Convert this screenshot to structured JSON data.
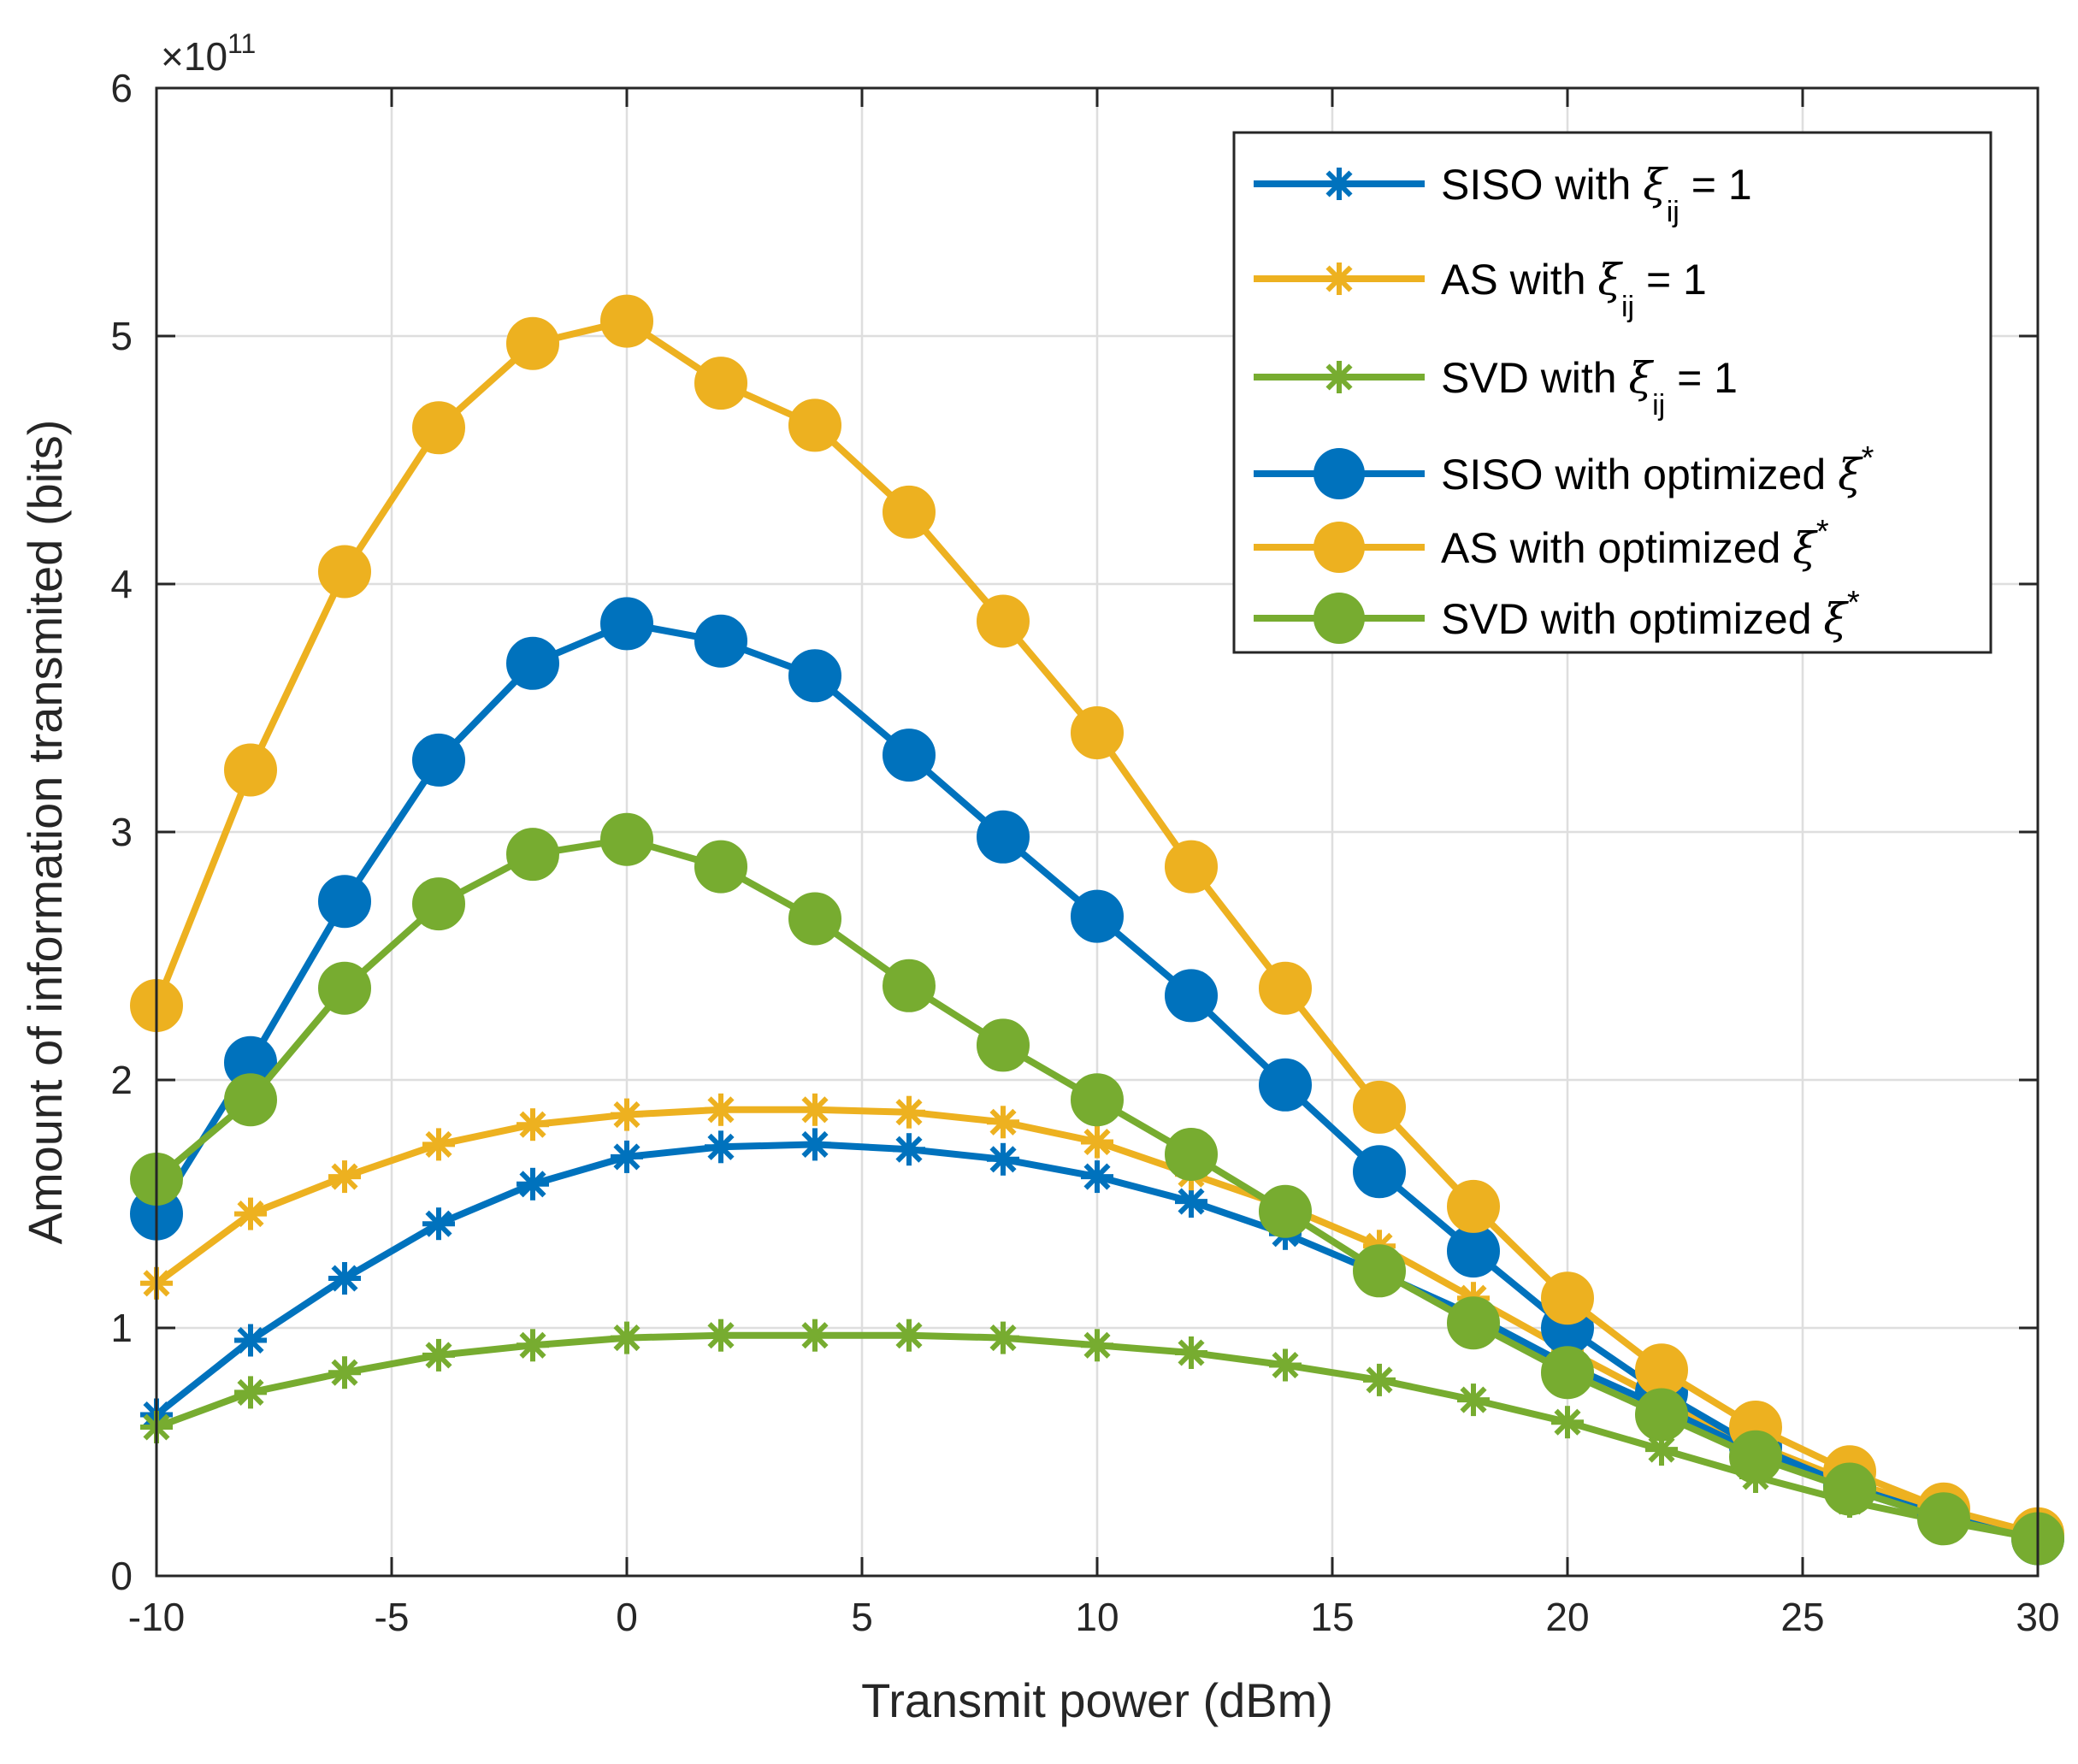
{
  "chart_data": {
    "type": "line",
    "xlabel": "Transmit power (dBm)",
    "ylabel": "Amount of information transmited (bits)",
    "y_multiplier": {
      "base": "×10",
      "exponent": "11"
    },
    "xlim": [
      -10,
      30
    ],
    "ylim": [
      0,
      6
    ],
    "xticks": [
      -10,
      -5,
      0,
      5,
      10,
      15,
      20,
      25,
      30
    ],
    "yticks": [
      0,
      1,
      2,
      3,
      4,
      5,
      6
    ],
    "grid": true,
    "legend_position": "top-right",
    "x": [
      -10,
      -8,
      -6,
      -4,
      -2,
      0,
      2,
      4,
      6,
      8,
      10,
      12,
      14,
      16,
      18,
      20,
      22,
      24,
      26,
      28,
      30
    ],
    "series": [
      {
        "key": "siso_xi1",
        "name": "SISO with ξ_ij = 1",
        "legend": {
          "prefix": "SISO with ",
          "symbol": "ξ",
          "sub": "ij",
          "sup": "",
          "suffix": " = 1"
        },
        "color": "#0072BD",
        "marker": "asterisk",
        "values": [
          0.65,
          0.95,
          1.2,
          1.42,
          1.58,
          1.69,
          1.73,
          1.74,
          1.72,
          1.68,
          1.61,
          1.51,
          1.38,
          1.22,
          1.05,
          0.85,
          0.68,
          0.5,
          0.35,
          0.23,
          0.15
        ]
      },
      {
        "key": "as_xi1",
        "name": "AS with ξ_ij = 1",
        "legend": {
          "prefix": "AS with ",
          "symbol": "ξ",
          "sub": "ij",
          "sup": "",
          "suffix": " = 1"
        },
        "color": "#EDB120",
        "marker": "asterisk",
        "values": [
          1.18,
          1.46,
          1.61,
          1.74,
          1.82,
          1.86,
          1.88,
          1.88,
          1.87,
          1.83,
          1.75,
          1.62,
          1.49,
          1.33,
          1.12,
          0.91,
          0.71,
          0.53,
          0.38,
          0.26,
          0.17
        ]
      },
      {
        "key": "svd_xi1",
        "name": "SVD with ξ_ij = 1",
        "legend": {
          "prefix": "SVD with ",
          "symbol": "ξ",
          "sub": "ij",
          "sup": "",
          "suffix": " = 1"
        },
        "color": "#77AC30",
        "marker": "asterisk",
        "values": [
          0.6,
          0.74,
          0.82,
          0.89,
          0.93,
          0.96,
          0.97,
          0.97,
          0.97,
          0.96,
          0.93,
          0.9,
          0.85,
          0.79,
          0.71,
          0.62,
          0.51,
          0.4,
          0.3,
          0.22,
          0.15
        ]
      },
      {
        "key": "siso_opt",
        "name": "SISO with optimized ξ*",
        "legend": {
          "prefix": "SISO with optimized ",
          "symbol": "ξ",
          "sub": "",
          "sup": "*",
          "suffix": ""
        },
        "color": "#0072BD",
        "marker": "circle",
        "values": [
          1.46,
          2.07,
          2.72,
          3.29,
          3.68,
          3.84,
          3.77,
          3.63,
          3.31,
          2.98,
          2.66,
          2.34,
          1.98,
          1.63,
          1.31,
          1.0,
          0.74,
          0.52,
          0.36,
          0.24,
          0.15
        ]
      },
      {
        "key": "as_opt",
        "name": "AS with optimized ξ*",
        "legend": {
          "prefix": "AS with optimized ",
          "symbol": "ξ",
          "sub": "",
          "sup": "*",
          "suffix": ""
        },
        "color": "#EDB120",
        "marker": "circle",
        "values": [
          2.3,
          3.25,
          4.05,
          4.63,
          4.97,
          5.06,
          4.81,
          4.64,
          4.29,
          3.85,
          3.4,
          2.86,
          2.37,
          1.89,
          1.49,
          1.12,
          0.83,
          0.6,
          0.42,
          0.27,
          0.17
        ]
      },
      {
        "key": "svd_opt",
        "name": "SVD with optimized ξ*",
        "legend": {
          "prefix": "SVD with optimized ",
          "symbol": "ξ",
          "sub": "",
          "sup": "*",
          "suffix": ""
        },
        "color": "#77AC30",
        "marker": "circle",
        "values": [
          1.6,
          1.92,
          2.37,
          2.71,
          2.91,
          2.97,
          2.86,
          2.65,
          2.38,
          2.14,
          1.92,
          1.7,
          1.47,
          1.23,
          1.02,
          0.82,
          0.65,
          0.48,
          0.35,
          0.23,
          0.15
        ]
      }
    ]
  }
}
